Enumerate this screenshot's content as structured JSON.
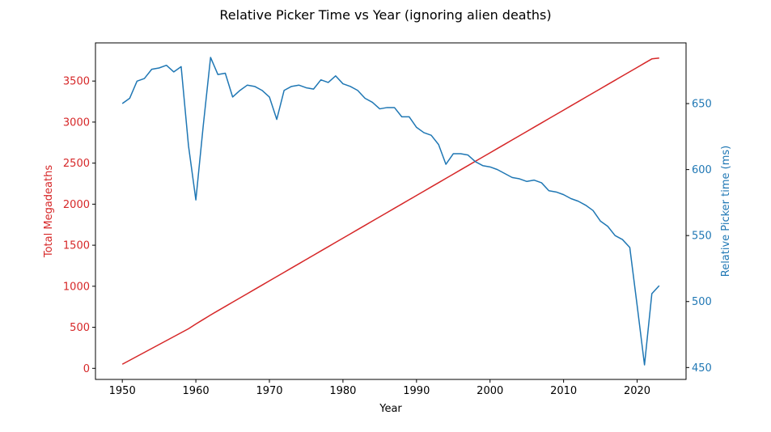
{
  "chart_data": {
    "type": "line",
    "title": "Relative Picker Time vs Year (ignoring alien deaths)",
    "xlabel": "Year",
    "ylabel_left": "Total Megadeaths",
    "ylabel_right": "Relative Picker time (ms)",
    "xlim": [
      1946.35,
      2026.65
    ],
    "ylim_left": [
      -135,
      3965
    ],
    "ylim_right": [
      441,
      696
    ],
    "xticks": [
      1950,
      1960,
      1970,
      1980,
      1990,
      2000,
      2010,
      2020
    ],
    "yticks_left": [
      0,
      500,
      1000,
      1500,
      2000,
      2500,
      3000,
      3500
    ],
    "yticks_right": [
      450,
      500,
      550,
      600,
      650
    ],
    "grid": false,
    "colors": {
      "left": "#d62728",
      "right": "#1f77b4"
    },
    "x": [
      1950,
      1951,
      1952,
      1953,
      1954,
      1955,
      1956,
      1957,
      1958,
      1959,
      1960,
      1961,
      1962,
      1963,
      1964,
      1965,
      1966,
      1967,
      1968,
      1969,
      1970,
      1971,
      1972,
      1973,
      1974,
      1975,
      1976,
      1977,
      1978,
      1979,
      1980,
      1981,
      1982,
      1983,
      1984,
      1985,
      1986,
      1987,
      1988,
      1989,
      1990,
      1991,
      1992,
      1993,
      1994,
      1995,
      1996,
      1997,
      1998,
      1999,
      2000,
      2001,
      2002,
      2003,
      2004,
      2005,
      2006,
      2007,
      2008,
      2009,
      2010,
      2011,
      2012,
      2013,
      2014,
      2015,
      2016,
      2017,
      2018,
      2019,
      2020,
      2021,
      2022,
      2023
    ],
    "series": [
      {
        "axis": "left",
        "color": "#d62728",
        "values": [
          50,
          98,
          146,
          194,
          242,
          290,
          338,
          386,
          434,
          482,
          540,
          595,
          650,
          702,
          754,
          806,
          858,
          910,
          962,
          1014,
          1066,
          1118,
          1170,
          1222,
          1274,
          1326,
          1378,
          1430,
          1482,
          1534,
          1586,
          1638,
          1690,
          1742,
          1794,
          1846,
          1898,
          1950,
          2002,
          2054,
          2106,
          2158,
          2210,
          2262,
          2314,
          2366,
          2418,
          2470,
          2522,
          2574,
          2626,
          2678,
          2730,
          2782,
          2834,
          2886,
          2938,
          2990,
          3042,
          3094,
          3146,
          3198,
          3250,
          3302,
          3354,
          3406,
          3458,
          3510,
          3562,
          3614,
          3666,
          3718,
          3770,
          3780
        ]
      },
      {
        "axis": "right",
        "color": "#1f77b4",
        "values": [
          650,
          654,
          667,
          669,
          676,
          677,
          679,
          674,
          678,
          618,
          577,
          633,
          685,
          672,
          673,
          655,
          660,
          664,
          663,
          660,
          655,
          638,
          660,
          663,
          664,
          662,
          661,
          668,
          666,
          671,
          665,
          663,
          660,
          654,
          651,
          646,
          647,
          647,
          640,
          640,
          632,
          628,
          626,
          619,
          604,
          612,
          612,
          611,
          606,
          603,
          602,
          600,
          597,
          594,
          593,
          591,
          592,
          590,
          584,
          583,
          581,
          578,
          576,
          573,
          569,
          561,
          557,
          550,
          547,
          541,
          497,
          452,
          506,
          512
        ]
      }
    ]
  }
}
